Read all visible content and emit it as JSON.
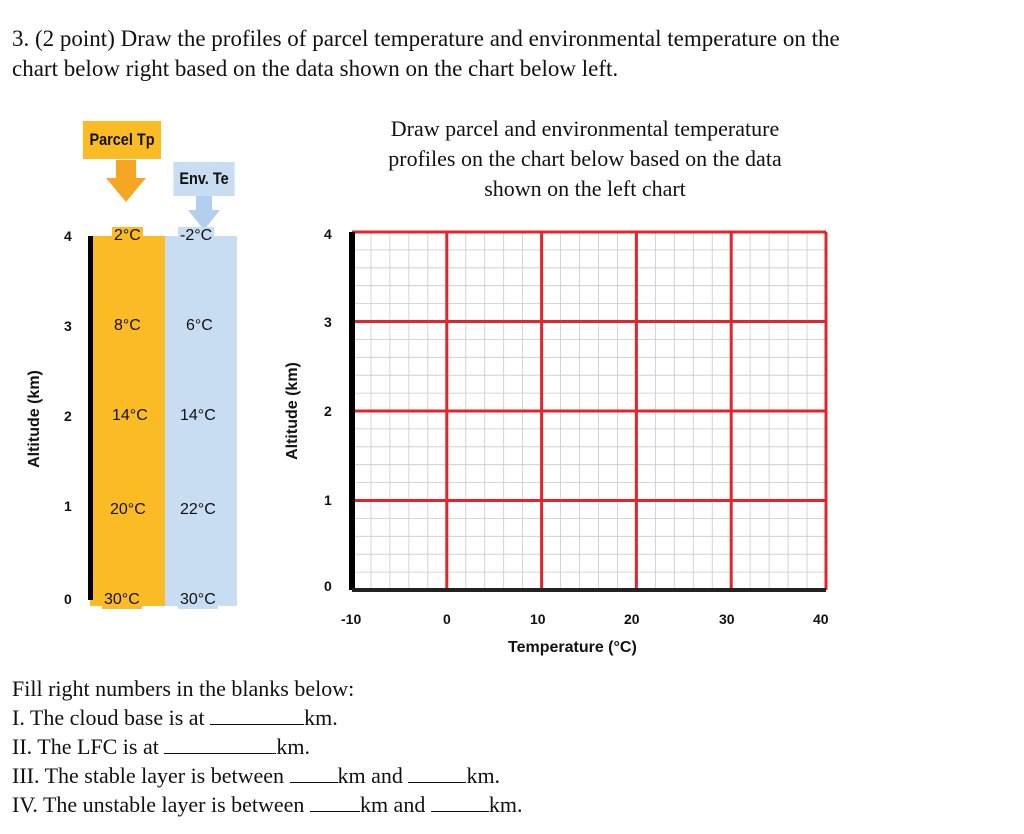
{
  "question": {
    "line1": "3. (2 point) Draw the profiles of parcel temperature and environmental temperature on the",
    "line2": "chart below right based on the data shown on the chart below left."
  },
  "left_chart": {
    "parcel_label": "Parcel Tp",
    "env_label": "Env. Te",
    "y_label": "Altitude (km)",
    "rows": [
      {
        "alt": "4",
        "tp": "2°C",
        "te": "-2°C"
      },
      {
        "alt": "3",
        "tp": "8°C",
        "te": "6°C"
      },
      {
        "alt": "2",
        "tp": "14°C",
        "te": "14°C"
      },
      {
        "alt": "1",
        "tp": "20°C",
        "te": "22°C"
      },
      {
        "alt": "0",
        "tp": "30°C",
        "te": "30°C"
      }
    ],
    "colors": {
      "parcel": "#fbbb25",
      "env": "#c8dcf2",
      "arrow_parcel": "#f5a623",
      "arrow_env": "#b3cff0"
    }
  },
  "right_chart": {
    "instruction_lines": [
      "Draw parcel and environmental temperature",
      "profiles on the chart below based on the data",
      "shown on the left chart"
    ],
    "x_label": "Temperature (°C)",
    "y_label": "Altitude (km)",
    "x_ticks": [
      "-10",
      "0",
      "10",
      "20",
      "30",
      "40"
    ],
    "y_ticks": [
      "4",
      "3",
      "2",
      "1",
      "0"
    ],
    "colors": {
      "major_grid": "#e3242b",
      "minor_grid": "#c9c9c9"
    }
  },
  "chart_data": [
    {
      "type": "table",
      "ylabel": "Altitude (km)",
      "y": [
        4,
        3,
        2,
        1,
        0
      ],
      "series": [
        {
          "name": "Parcel Tp",
          "values": [
            2,
            8,
            14,
            20,
            30
          ]
        },
        {
          "name": "Env. Te",
          "values": [
            -2,
            6,
            14,
            22,
            30
          ]
        }
      ]
    },
    {
      "type": "line",
      "xlabel": "Temperature (°C)",
      "ylabel": "Altitude (km)",
      "xlim": [
        -10,
        40
      ],
      "ylim": [
        0,
        4
      ],
      "x_ticks": [
        -10,
        0,
        10,
        20,
        30,
        40
      ],
      "y_ticks": [
        0,
        1,
        2,
        3,
        4
      ],
      "grid": true,
      "series": []
    }
  ],
  "blanks": {
    "line1": {
      "a": "I. The cloud base is at",
      "b": "km."
    },
    "line2": {
      "a": "II. The LFC is at",
      "b": "km."
    },
    "line3": {
      "a": "III. The stable layer is between",
      "b": "km and",
      "c": "km."
    },
    "line4": {
      "a": "IV. The unstable layer is between",
      "b": "km and",
      "c": "km."
    }
  }
}
